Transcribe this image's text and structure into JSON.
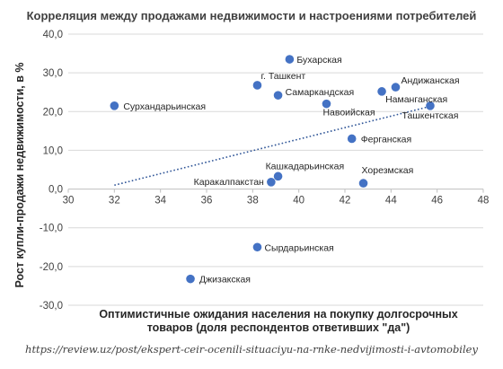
{
  "chart_data": {
    "type": "scatter",
    "title": "Корреляция между продажами недвижимости и настроениями потребителей",
    "xlabel_lines": [
      "Оптимистичные ожидания населения на покупку долгосрочных",
      "товаров (доля респондентов ответивших \"да\")"
    ],
    "ylabel": "Рост купли-продажи недвижимости, в %",
    "xlim": [
      30,
      48
    ],
    "ylim": [
      -30,
      40
    ],
    "x_ticks": [
      "30",
      "32",
      "34",
      "36",
      "38",
      "40",
      "42",
      "44",
      "46",
      "48"
    ],
    "y_ticks": [
      "-30,0",
      "-20,0",
      "-10,0",
      "0,0",
      "10,0",
      "20,0",
      "30,0",
      "40,0"
    ],
    "trendline": {
      "style": "dotted",
      "x": [
        32.0,
        45.8
      ],
      "y": [
        1.0,
        21.5
      ]
    },
    "marker_color": "#4472C4",
    "points": [
      {
        "label": "Бухарская",
        "x": 39.6,
        "y": 33.5
      },
      {
        "label": "г. Ташкент",
        "x": 38.2,
        "y": 26.8
      },
      {
        "label": "Самаркандская",
        "x": 39.1,
        "y": 24.2
      },
      {
        "label": "Андижанская",
        "x": 44.2,
        "y": 26.3
      },
      {
        "label": "Наманганская",
        "x": 43.6,
        "y": 25.2
      },
      {
        "label": "Сурхандарьинская",
        "x": 32.0,
        "y": 21.5
      },
      {
        "label": "Навоийская",
        "x": 41.2,
        "y": 22.0
      },
      {
        "label": "Ташкентская",
        "x": 45.7,
        "y": 21.5
      },
      {
        "label": "Ферганская",
        "x": 42.3,
        "y": 13.0
      },
      {
        "label": "Кашкадарьинская",
        "x": 39.1,
        "y": 3.3
      },
      {
        "label": "Каракалпакстан",
        "x": 38.8,
        "y": 1.8
      },
      {
        "label": "Хорезмская",
        "x": 42.8,
        "y": 1.5
      },
      {
        "label": "Сырдарьинская",
        "x": 38.2,
        "y": -15.0
      },
      {
        "label": "Джизакская",
        "x": 35.3,
        "y": -23.2
      }
    ]
  },
  "source_text": "https://review.uz/post/ekspert-ceir-ocenili-situaciyu-na-rnke-nedvijimosti-i-avtomobiley"
}
